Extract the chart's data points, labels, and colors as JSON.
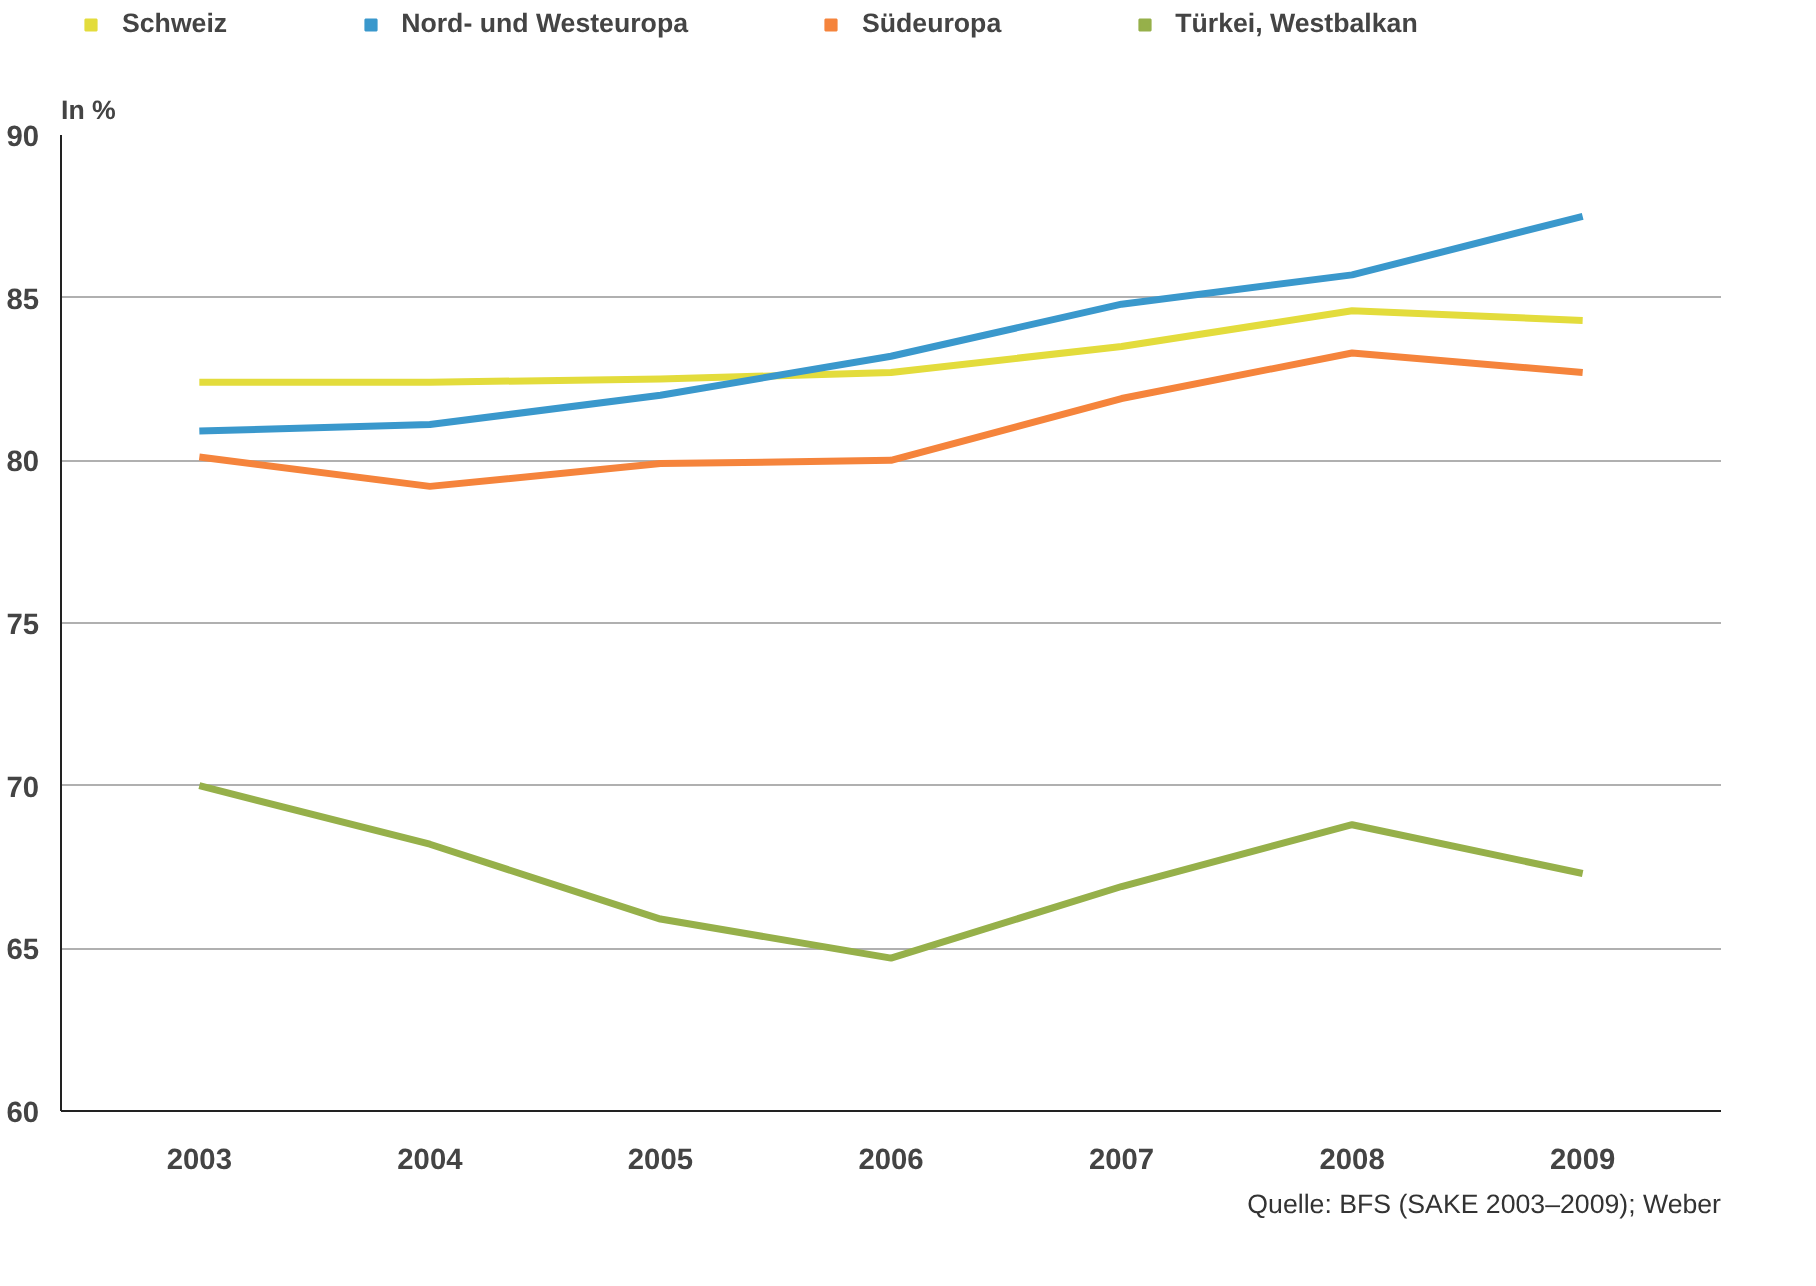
{
  "chart_data": {
    "type": "line",
    "ylabel": "In %",
    "categories": [
      "2003",
      "2004",
      "2005",
      "2006",
      "2007",
      "2008",
      "2009"
    ],
    "series": [
      {
        "name": "Schweiz",
        "color": "#e3dc3c",
        "values": [
          82.4,
          82.4,
          82.5,
          82.7,
          83.5,
          84.6,
          84.3
        ]
      },
      {
        "name": "Nord- und Westeuropa",
        "color": "#3a98cc",
        "values": [
          80.9,
          81.1,
          82.0,
          83.2,
          84.8,
          85.7,
          87.5
        ]
      },
      {
        "name": "Südeuropa",
        "color": "#f5843c",
        "values": [
          80.1,
          79.2,
          79.9,
          80.0,
          81.9,
          83.3,
          82.7
        ]
      },
      {
        "name": "Türkei, Westbalkan",
        "color": "#96b04a",
        "values": [
          70.0,
          68.2,
          65.9,
          64.7,
          66.9,
          68.8,
          67.3
        ]
      }
    ],
    "ylim": [
      60,
      90
    ],
    "yticks": [
      60,
      65,
      70,
      75,
      80,
      85,
      90
    ],
    "grid": "y",
    "legend": "top",
    "marker": "none",
    "line_style": "solid",
    "annotations": [
      "Quelle: BFS (SAKE 2003–2009); Weber"
    ]
  }
}
